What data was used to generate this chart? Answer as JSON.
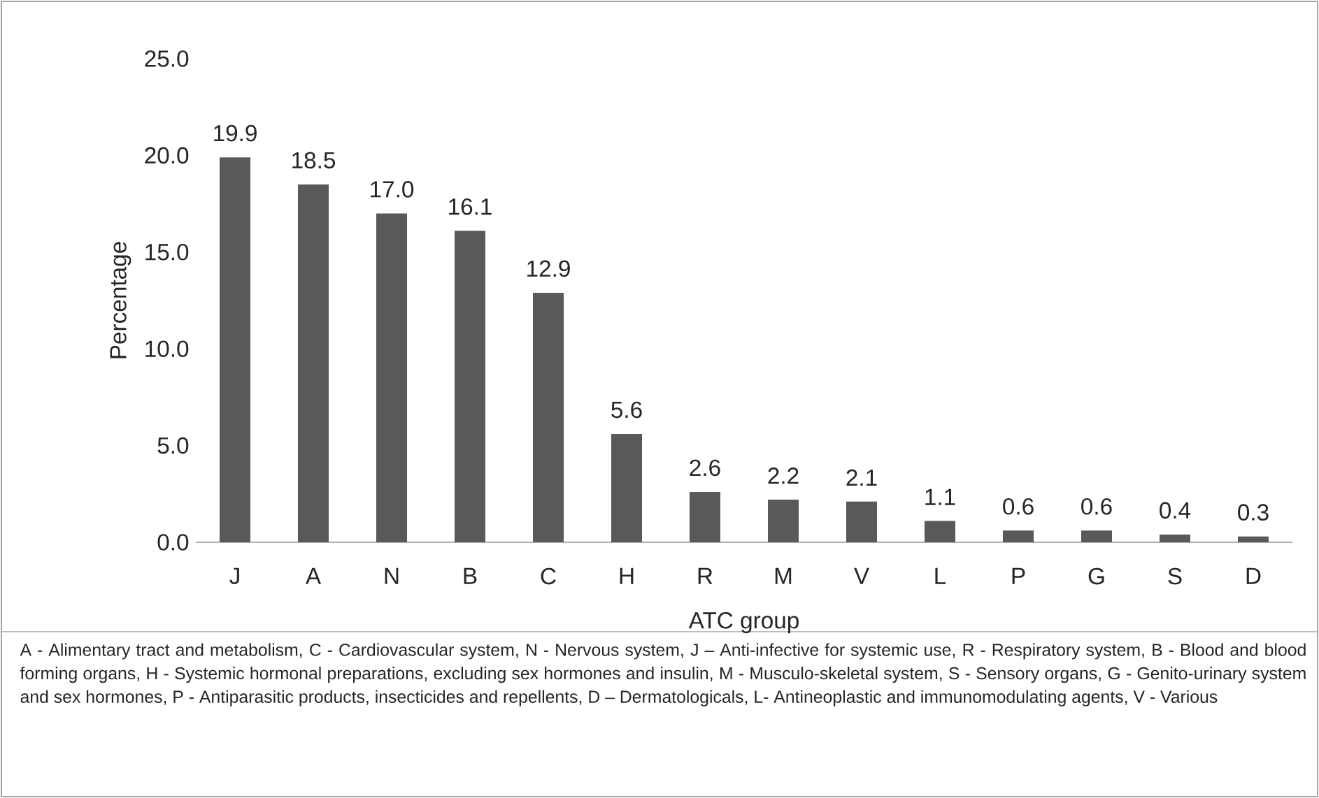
{
  "chart_data": {
    "type": "bar",
    "xlabel": "ATC group",
    "ylabel": "Percentage",
    "categories": [
      "J",
      "A",
      "N",
      "B",
      "C",
      "H",
      "R",
      "M",
      "V",
      "L",
      "P",
      "G",
      "S",
      "D"
    ],
    "values": [
      19.9,
      18.5,
      17.0,
      16.1,
      12.9,
      5.6,
      2.6,
      2.2,
      2.1,
      1.1,
      0.6,
      0.6,
      0.4,
      0.3
    ],
    "value_labels": [
      "19.9",
      "18.5",
      "17.0",
      "16.1",
      "12.9",
      "5.6",
      "2.6",
      "2.2",
      "2.1",
      "1.1",
      "0.6",
      "0.6",
      "0.4",
      "0.3"
    ],
    "color": "#595959",
    "ylim": [
      0,
      25
    ],
    "yticks": [
      {
        "value": 0,
        "label": "0.0"
      },
      {
        "value": 5,
        "label": "5.0"
      },
      {
        "value": 10,
        "label": "10.0"
      },
      {
        "value": 15,
        "label": "15.0"
      },
      {
        "value": 20,
        "label": "20.0"
      },
      {
        "value": 25,
        "label": "25.0"
      }
    ],
    "annotations": [
      "A - Alimentary tract and metabolism, C - Cardiovascular system, N - Nervous system, J – Anti-infective for systemic use, R - Respiratory system, B - Blood and blood forming organs, H - Systemic hormonal preparations, excluding sex hormones and insulin, M - Musculo-skeletal system, S - Sensory organs, G - Genito-urinary system and sex hormones, P - Antiparasitic products, insecticides and repellents, D – Dermatologicals, L- Antineoplastic and immunomodulating agents, V - Various"
    ]
  }
}
